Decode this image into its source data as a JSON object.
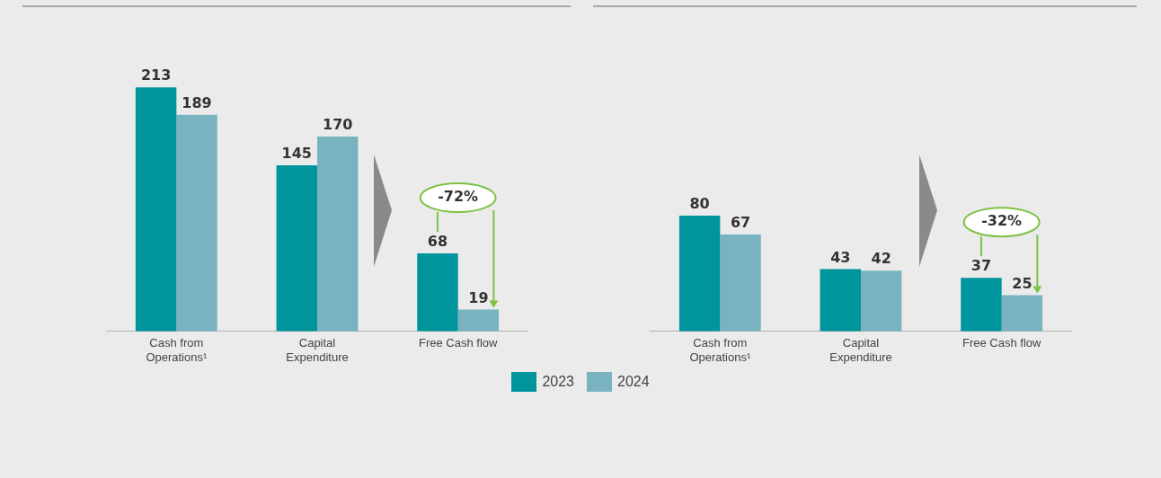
{
  "chart_data": [
    {
      "type": "bar",
      "categories": [
        "Cash from Operations¹",
        "Capital Expenditure",
        "Free Cash flow"
      ],
      "series": [
        {
          "name": "2023",
          "color": "#00949d",
          "values": [
            213,
            145,
            68
          ]
        },
        {
          "name": "2024",
          "color": "#79b3c0",
          "values": [
            189,
            170,
            19
          ]
        }
      ],
      "data_labels": true,
      "legend": "bottom",
      "annotations": [
        "-72%"
      ]
    },
    {
      "type": "bar",
      "categories": [
        "Cash from Operations¹",
        "Capital Expenditure",
        "Free Cash flow"
      ],
      "series": [
        {
          "name": "2023",
          "color": "#00949d",
          "values": [
            80,
            43,
            37
          ]
        },
        {
          "name": "2024",
          "color": "#79b3c0",
          "values": [
            67,
            42,
            25
          ]
        }
      ],
      "data_labels": true,
      "annotations": [
        "-32%"
      ]
    }
  ]
}
